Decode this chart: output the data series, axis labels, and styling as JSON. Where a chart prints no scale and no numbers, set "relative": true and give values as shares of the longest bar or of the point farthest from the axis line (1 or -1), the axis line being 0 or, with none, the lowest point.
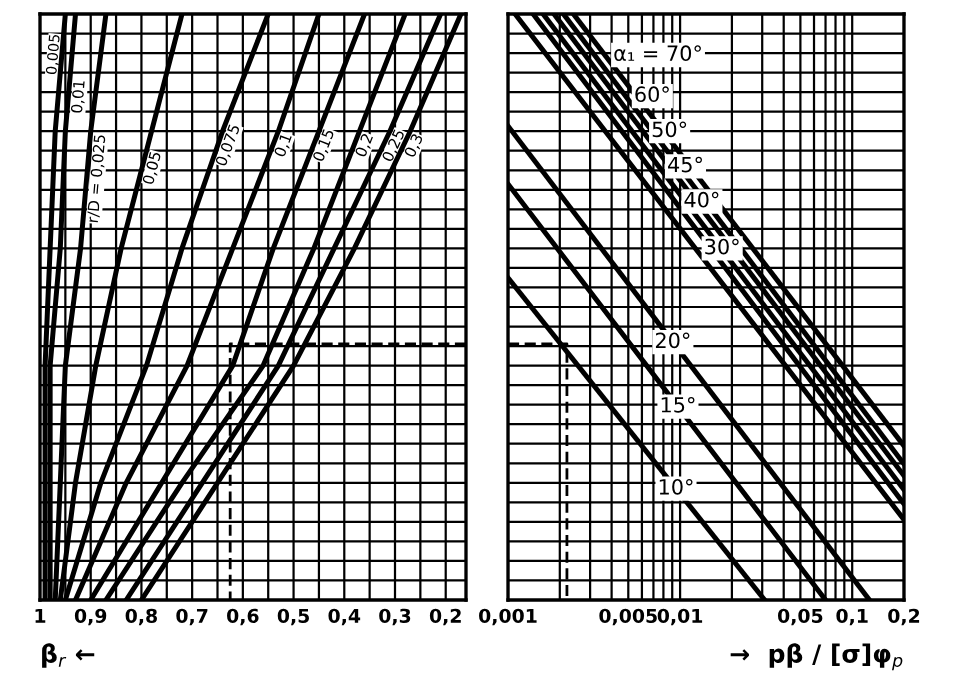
{
  "chart_data": [
    {
      "type": "line",
      "relative": true,
      "xlabel": "β$_{r}$ ←",
      "xlim": [
        1,
        0.16
      ],
      "xticks": [
        {
          "value": 1,
          "label": "1"
        },
        {
          "value": 0.95,
          "label": null
        },
        {
          "value": 0.9,
          "label": "0,9"
        },
        {
          "value": 0.85,
          "label": null
        },
        {
          "value": 0.8,
          "label": "0,8"
        },
        {
          "value": 0.75,
          "label": null
        },
        {
          "value": 0.7,
          "label": "0,7"
        },
        {
          "value": 0.65,
          "label": null
        },
        {
          "value": 0.6,
          "label": "0,6"
        },
        {
          "value": 0.55,
          "label": null
        },
        {
          "value": 0.5,
          "label": "0,5"
        },
        {
          "value": 0.45,
          "label": null
        },
        {
          "value": 0.4,
          "label": "0,4"
        },
        {
          "value": 0.35,
          "label": null
        },
        {
          "value": 0.3,
          "label": "0,3"
        },
        {
          "value": 0.25,
          "label": null
        },
        {
          "value": 0.2,
          "label": "0,2"
        }
      ],
      "tick_labels": "x",
      "grid": true,
      "legend": false,
      "marker": "none",
      "line_style": "solid",
      "series": [
        {
          "name": "0,005",
          "color": "#000000",
          "x": [
            0.99,
            0.99,
            0.99,
            0.98,
            0.97,
            0.95
          ],
          "values": [
            0,
            0.2,
            0.4,
            0.6,
            0.8,
            1
          ]
        },
        {
          "name": "0,01",
          "color": "#000000",
          "x": [
            0.98,
            0.98,
            0.98,
            0.96,
            0.95,
            0.93
          ],
          "values": [
            0,
            0.2,
            0.4,
            0.6,
            0.8,
            1
          ]
        },
        {
          "name": "r/D = 0,025",
          "color": "#000000",
          "x": [
            0.97,
            0.96,
            0.95,
            0.92,
            0.9,
            0.87
          ],
          "values": [
            0,
            0.2,
            0.4,
            0.6,
            0.8,
            1
          ]
        },
        {
          "name": "0,05",
          "color": "#000000",
          "x": [
            0.96,
            0.93,
            0.89,
            0.84,
            0.78,
            0.72
          ],
          "values": [
            0,
            0.2,
            0.4,
            0.6,
            0.8,
            1
          ]
        },
        {
          "name": "0,075",
          "color": "#000000",
          "x": [
            0.95,
            0.88,
            0.79,
            0.72,
            0.64,
            0.55
          ],
          "values": [
            0,
            0.2,
            0.4,
            0.6,
            0.8,
            1
          ]
        },
        {
          "name": "0,1",
          "color": "#000000",
          "x": [
            0.93,
            0.83,
            0.71,
            0.62,
            0.53,
            0.45
          ],
          "values": [
            0,
            0.2,
            0.4,
            0.6,
            0.8,
            1
          ]
        },
        {
          "name": "0,15",
          "color": "#000000",
          "x": [
            0.9,
            0.76,
            0.62,
            0.54,
            0.45,
            0.36
          ],
          "values": [
            0,
            0.2,
            0.4,
            0.6,
            0.8,
            1
          ]
        },
        {
          "name": "0,2",
          "color": "#000000",
          "x": [
            0.87,
            0.72,
            0.56,
            0.46,
            0.37,
            0.28
          ],
          "values": [
            0,
            0.2,
            0.4,
            0.6,
            0.8,
            1
          ]
        },
        {
          "name": "0,25",
          "color": "#000000",
          "x": [
            0.83,
            0.68,
            0.53,
            0.42,
            0.31,
            0.21
          ],
          "values": [
            0,
            0.2,
            0.4,
            0.6,
            0.8,
            1
          ]
        },
        {
          "name": "0,3",
          "color": "#000000",
          "x": [
            0.8,
            0.65,
            0.5,
            0.38,
            0.27,
            0.17
          ],
          "values": [
            0,
            0.2,
            0.4,
            0.6,
            0.8,
            1
          ]
        },
        {
          "color": "#000000",
          "line_style": "dashed",
          "x": [
            0.16,
            0.625,
            0.625
          ],
          "values": [
            0.437,
            0.437,
            0
          ]
        }
      ]
    },
    {
      "type": "line",
      "relative": true,
      "xlabel": "→  pβ / [σ]φ$_{p}$",
      "log": "x",
      "xlim": [
        0.001,
        0.2
      ],
      "xticks": [
        {
          "value": 0.001,
          "label": "0,001"
        },
        {
          "value": 0.002,
          "label": null
        },
        {
          "value": 0.003,
          "label": null
        },
        {
          "value": 0.004,
          "label": null
        },
        {
          "value": 0.005,
          "label": "0,005"
        },
        {
          "value": 0.006,
          "label": null
        },
        {
          "value": 0.007,
          "label": null
        },
        {
          "value": 0.008,
          "label": null
        },
        {
          "value": 0.009,
          "label": null
        },
        {
          "value": 0.01,
          "label": "0,01"
        },
        {
          "value": 0.02,
          "label": null
        },
        {
          "value": 0.03,
          "label": null
        },
        {
          "value": 0.04,
          "label": null
        },
        {
          "value": 0.05,
          "label": "0,05"
        },
        {
          "value": 0.06,
          "label": null
        },
        {
          "value": 0.07,
          "label": null
        },
        {
          "value": 0.08,
          "label": null
        },
        {
          "value": 0.09,
          "label": null
        },
        {
          "value": 0.1,
          "label": "0,1"
        },
        {
          "value": 0.2,
          "label": "0,2"
        }
      ],
      "tick_labels": "x",
      "grid": true,
      "legend": false,
      "marker": "none",
      "line_style": "solid",
      "series": [
        {
          "name": "α₁ = 70°",
          "color": "#000000",
          "x": [
            0.0024,
            0.2
          ],
          "values": [
            1,
            0.263
          ]
        },
        {
          "name": "60°",
          "color": "#000000",
          "x": [
            0.0021,
            0.2
          ],
          "values": [
            1,
            0.232
          ]
        },
        {
          "name": "50°",
          "color": "#000000",
          "x": [
            0.00185,
            0.2
          ],
          "values": [
            1,
            0.212
          ]
        },
        {
          "name": "45°",
          "color": "#000000",
          "x": [
            0.0016,
            0.2
          ],
          "values": [
            1,
            0.188
          ]
        },
        {
          "name": "40°",
          "color": "#000000",
          "x": [
            0.0014,
            0.2
          ],
          "values": [
            1,
            0.164
          ]
        },
        {
          "name": "30°",
          "color": "#000000",
          "x": [
            0.0011,
            0.2
          ],
          "values": [
            1,
            0.137
          ]
        },
        {
          "name": "20°",
          "color": "#000000",
          "x": [
            0.001,
            0.126
          ],
          "values": [
            0.809,
            0
          ]
        },
        {
          "name": "15°",
          "color": "#000000",
          "x": [
            0.001,
            0.07
          ],
          "values": [
            0.71,
            0
          ]
        },
        {
          "name": "10°",
          "color": "#000000",
          "x": [
            0.001,
            0.031
          ],
          "values": [
            0.55,
            0
          ]
        },
        {
          "color": "#000000",
          "line_style": "dashed",
          "x": [
            0.001,
            0.0022,
            0.0022
          ],
          "values": [
            0.437,
            0.437,
            0
          ]
        }
      ]
    }
  ]
}
